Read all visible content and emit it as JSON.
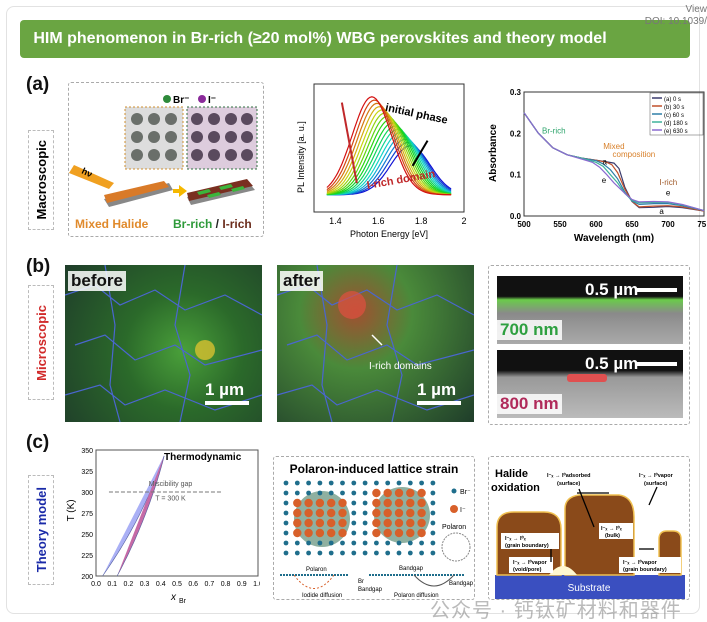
{
  "doi": {
    "line1": "View",
    "line2": "DOI: 10.1039/"
  },
  "title": "HIM phenomenon in Br-rich (≥20 mol%) WBG perovskites and theory model",
  "panels": {
    "a": "(a)",
    "b": "(b)",
    "c": "(c)"
  },
  "side_labels": {
    "macro": "Macroscopic",
    "micro": "Microscopic",
    "theory": "Theory model"
  },
  "schematic": {
    "legend_br": "Br⁻",
    "legend_i": "I⁻",
    "hv": "hν",
    "mixed": "Mixed Halide",
    "brrich": "Br-rich",
    "slash": " / ",
    "irich": "I-rich",
    "colors": {
      "mixed": "#e08a2c",
      "br": "#2e9a3a",
      "i": "#6b2c1c"
    }
  },
  "micro": {
    "before": "before",
    "after": "after",
    "scale1": "1 µm",
    "irich_domains": "I-rich domains",
    "scale2": "0.5 µm",
    "nm700": "700 nm",
    "nm800": "800 nm"
  },
  "polaron": {
    "title": "Polaron-induced lattice strain",
    "br": "Br⁻",
    "i": "I⁻",
    "polaron": "Polaron",
    "polaron_small": "Polaron",
    "iodide_diffusion": "Iodide diffusion",
    "bandgap": "Bandgap",
    "br_bandgap": "Br",
    "bandgap2": "Bandgap",
    "bandgap3": "Bandgap",
    "polaron_diffusion": "Polaron diffusion"
  },
  "halide": {
    "title1": "Halide",
    "title2": "oxidation",
    "l1a": "I⁻ₓ → I⁰ₓ",
    "l1b": "(grain boundary)",
    "l2a": "I⁻ₓ → I⁰vapor",
    "l2b": "(void/pore)",
    "l3a": "I⁻ₓ → I⁰adsorbed",
    "l3b": "(surface)",
    "l4a": "I⁻ₓ → I⁰ₓ",
    "l4b": "(bulk)",
    "l5a": "I⁻ₓ → I⁰vapor",
    "l5b": "(surface)",
    "l6a": "I⁻ₓ → I⁰vapor",
    "l6b": "(grain boundary)",
    "substrate": "Substrate"
  },
  "watermark": "公众号 · 钙钛矿材料和器件",
  "chart_data": [
    {
      "type": "line",
      "name": "pl",
      "xlabel": "Photon Energy [eV]",
      "ylabel": "PL Intensity [a. u.]",
      "xlim": [
        1.3,
        2.0
      ],
      "xticks": [
        "1.4",
        "1.6",
        "1.8",
        "2"
      ],
      "xtick_values": [
        1.4,
        1.6,
        1.8,
        2.0
      ],
      "peak_start_ev": 1.75,
      "peak_end_ev": 1.57,
      "peak_start_intensity": 0.5,
      "peak_end_intensity": 1.0,
      "n_curves": 16,
      "annotations": {
        "initial": "initial phase",
        "irich": "I-rich domain"
      }
    },
    {
      "type": "line",
      "name": "absorbance",
      "xlabel": "Wavelength (nm)",
      "ylabel": "Absorbance",
      "xlim": [
        500,
        750
      ],
      "ylim": [
        0,
        0.3
      ],
      "xticks": [
        "500",
        "550",
        "600",
        "650",
        "700",
        "750"
      ],
      "yticks": [
        "0.0",
        "0.1",
        "0.2",
        "0.3"
      ],
      "series": [
        {
          "name": "(a) 0 s",
          "color": "#3b3b6e",
          "x": [
            500,
            520,
            540,
            560,
            580,
            600,
            615,
            625,
            632,
            640,
            650,
            660,
            680,
            700,
            720,
            750
          ],
          "y": [
            0.25,
            0.2,
            0.165,
            0.148,
            0.14,
            0.135,
            0.131,
            0.128,
            0.115,
            0.07,
            0.035,
            0.02,
            0.021,
            0.023,
            0.02,
            0.012
          ]
        },
        {
          "name": "(b) 30 s",
          "color": "#c0502a",
          "x": [
            500,
            520,
            540,
            560,
            580,
            600,
            615,
            622,
            630,
            640,
            650,
            660,
            680,
            700,
            720,
            750
          ],
          "y": [
            0.25,
            0.2,
            0.165,
            0.148,
            0.14,
            0.135,
            0.13,
            0.124,
            0.105,
            0.065,
            0.035,
            0.022,
            0.024,
            0.025,
            0.022,
            0.012
          ]
        },
        {
          "name": "(c) 60 s",
          "color": "#2f7fa8",
          "x": [
            500,
            520,
            540,
            560,
            580,
            600,
            610,
            620,
            630,
            640,
            650,
            660,
            680,
            700,
            720,
            750
          ],
          "y": [
            0.25,
            0.2,
            0.165,
            0.148,
            0.14,
            0.134,
            0.126,
            0.112,
            0.09,
            0.058,
            0.036,
            0.028,
            0.03,
            0.03,
            0.025,
            0.013
          ]
        },
        {
          "name": "(d) 180 s",
          "color": "#3fb39a",
          "x": [
            500,
            520,
            540,
            560,
            580,
            600,
            610,
            620,
            630,
            640,
            650,
            660,
            680,
            700,
            720,
            750
          ],
          "y": [
            0.25,
            0.2,
            0.165,
            0.148,
            0.14,
            0.13,
            0.12,
            0.1,
            0.08,
            0.055,
            0.038,
            0.032,
            0.033,
            0.033,
            0.027,
            0.013
          ]
        },
        {
          "name": "(e) 630 s",
          "color": "#8a6ad0",
          "x": [
            500,
            520,
            540,
            560,
            580,
            595,
            605,
            615,
            625,
            640,
            650,
            660,
            680,
            700,
            720,
            750
          ],
          "y": [
            0.25,
            0.2,
            0.165,
            0.148,
            0.138,
            0.13,
            0.118,
            0.1,
            0.08,
            0.055,
            0.04,
            0.034,
            0.035,
            0.034,
            0.028,
            0.013
          ]
        }
      ],
      "annotations": {
        "br": "Br-rich",
        "mixed1": "Mixed",
        "mixed2": "composition",
        "irich": "I-rich",
        "a": "a",
        "e": "e"
      }
    },
    {
      "type": "area",
      "name": "phase-diagram",
      "title": "Thermodynamic",
      "xlabel": "x",
      "xlabel_sub": "Br",
      "ylabel": "T (K)",
      "xlim": [
        0,
        1
      ],
      "ylim": [
        200,
        350
      ],
      "xticks": [
        "0.0",
        "0.1",
        "0.2",
        "0.3",
        "0.4",
        "0.5",
        "0.6",
        "0.7",
        "0.8",
        "0.9",
        "1.0"
      ],
      "yticks": [
        "200",
        "225",
        "250",
        "275",
        "300",
        "325",
        "350"
      ],
      "binodal": {
        "x_low": 0.04,
        "x_high": 0.81,
        "x_peak": 0.42,
        "t_peak": 343
      },
      "spinodal": {
        "x_low": 0.13,
        "x_high": 0.65,
        "x_peak": 0.42,
        "t_peak": 343
      },
      "gap_T": 300,
      "gap_label": "Miscibility gap",
      "gap_T_label": "T = 300 K",
      "colors": {
        "binodal": "#aab0f5",
        "spinodal": "#c66aa6"
      }
    }
  ]
}
